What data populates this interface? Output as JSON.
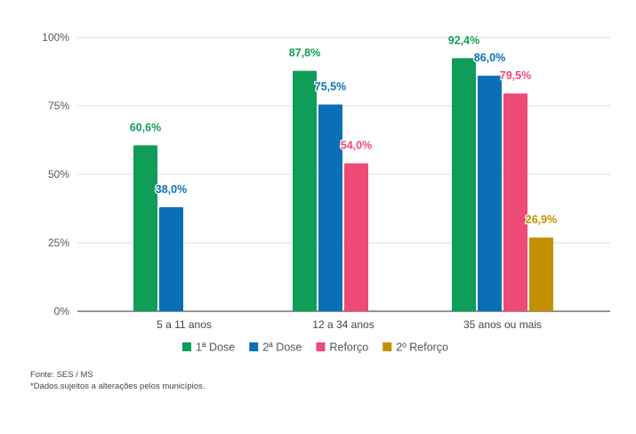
{
  "chart_data": {
    "type": "bar",
    "title": "",
    "xlabel": "",
    "ylabel": "",
    "ylim": [
      0,
      100
    ],
    "yticks": [
      "0%",
      "25%",
      "50%",
      "75%",
      "100%"
    ],
    "categories": [
      "5 a 11 anos",
      "12 a 34 anos",
      "35 anos ou mais"
    ],
    "series": [
      {
        "name": "1ª Dose",
        "color": "#0f9d58",
        "values": [
          60.6,
          87.8,
          92.4
        ],
        "labels": [
          "60,6%",
          "87,8%",
          "92,4%"
        ]
      },
      {
        "name": "2ª Dose",
        "color": "#0b6fb8",
        "values": [
          38.0,
          75.5,
          86.0
        ],
        "labels": [
          "38,0%",
          "75,5%",
          "86,0%"
        ]
      },
      {
        "name": "Reforço",
        "color": "#ee4a76",
        "values": [
          null,
          54.0,
          79.5
        ],
        "labels": [
          "",
          "54,0%",
          "79,5%"
        ]
      },
      {
        "name": "2º Reforço",
        "color": "#c49000",
        "values": [
          null,
          null,
          26.9
        ],
        "labels": [
          "",
          "",
          "26,9%"
        ]
      }
    ],
    "grid": true,
    "legend": "bottom"
  },
  "footer": {
    "source": "Fonte: SES / MS",
    "note": "*Dados sujeitos a alterações pelos municípios."
  }
}
